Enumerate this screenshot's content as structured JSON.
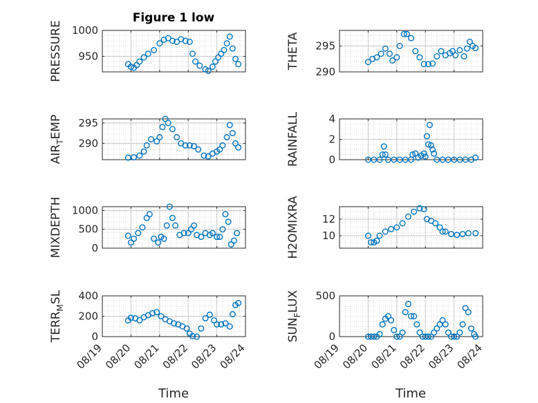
{
  "figure": {
    "title": "Figure 1 low",
    "marker_color": "#0072BD",
    "grid_color": "#d9d9d9",
    "axis_color": "#262626",
    "x_tick_labels": [
      "08/19",
      "08/20",
      "08/21",
      "08/22",
      "08/23",
      "08/24"
    ],
    "x_axis_label": "Time"
  },
  "chart_data": [
    {
      "type": "scatter",
      "ylabel": "PRESSURE",
      "ylim": [
        920,
        1000
      ],
      "yticks": [
        950,
        1000
      ],
      "xlim": [
        0,
        5
      ],
      "grid": "on",
      "x": [
        0.9,
        1.0,
        1.1,
        1.2,
        1.3,
        1.45,
        1.6,
        1.8,
        2.0,
        2.15,
        2.3,
        2.45,
        2.6,
        2.75,
        2.9,
        3.05,
        3.15,
        3.25,
        3.4,
        3.6,
        3.7,
        3.85,
        3.95,
        4.05,
        4.15,
        4.25,
        4.35,
        4.45,
        4.55,
        4.65,
        4.75
      ],
      "y": [
        935,
        930,
        928,
        933,
        940,
        948,
        955,
        962,
        975,
        982,
        985,
        980,
        978,
        983,
        980,
        978,
        955,
        940,
        932,
        925,
        922,
        930,
        940,
        948,
        955,
        962,
        975,
        988,
        965,
        945,
        935
      ]
    },
    {
      "type": "scatter",
      "ylabel": "THETA",
      "ylim": [
        290,
        298
      ],
      "yticks": [
        290,
        295
      ],
      "xlim": [
        0,
        5
      ],
      "grid": "on",
      "x": [
        1.0,
        1.15,
        1.3,
        1.45,
        1.6,
        1.75,
        1.85,
        2.0,
        2.1,
        2.25,
        2.35,
        2.5,
        2.65,
        2.8,
        2.95,
        3.1,
        3.25,
        3.4,
        3.55,
        3.7,
        3.85,
        3.95,
        4.05,
        4.2,
        4.35,
        4.45,
        4.55,
        4.65,
        4.75
      ],
      "y": [
        291.9,
        292.5,
        292.8,
        293.5,
        294.5,
        293.5,
        292.2,
        292.8,
        295,
        297.3,
        297.3,
        296.5,
        294,
        292.8,
        291.5,
        291.5,
        291.6,
        293,
        294,
        293.2,
        293.6,
        294,
        293.2,
        294.2,
        293,
        294.5,
        295.8,
        295,
        294.6
      ]
    },
    {
      "type": "scatter",
      "ylabel": "AIR_TEMP",
      "ylim": [
        286,
        296
      ],
      "yticks": [
        290,
        295
      ],
      "xlim": [
        0,
        5
      ],
      "grid": "on",
      "x": [
        0.9,
        1.1,
        1.3,
        1.45,
        1.55,
        1.7,
        1.9,
        2.0,
        2.1,
        2.2,
        2.3,
        2.45,
        2.6,
        2.75,
        2.9,
        3.05,
        3.2,
        3.35,
        3.55,
        3.7,
        3.85,
        4.0,
        4.1,
        4.2,
        4.35,
        4.45,
        4.55,
        4.65,
        4.75
      ],
      "y": [
        286.5,
        286.6,
        287,
        288,
        289.5,
        291,
        290.5,
        291.5,
        294,
        296,
        295,
        293.5,
        291.5,
        290,
        289.5,
        289.5,
        289.3,
        288.5,
        287,
        286.8,
        287.5,
        288,
        288.5,
        289.5,
        291.5,
        294.5,
        292.5,
        290,
        289
      ]
    },
    {
      "type": "scatter",
      "ylabel": "RAINFALL",
      "ylim": [
        0,
        4
      ],
      "yticks": [
        0,
        2,
        4
      ],
      "xlim": [
        0,
        5
      ],
      "grid": "on",
      "x": [
        1.0,
        1.2,
        1.4,
        1.5,
        1.55,
        1.6,
        1.7,
        1.9,
        2.1,
        2.3,
        2.5,
        2.55,
        2.65,
        2.75,
        2.85,
        2.95,
        3.0,
        3.05,
        3.1,
        3.15,
        3.2,
        3.25,
        3.3,
        3.4,
        3.6,
        3.8,
        4.0,
        4.2,
        4.4,
        4.6,
        4.75
      ],
      "y": [
        0,
        0,
        0,
        0.5,
        1.3,
        0.5,
        0,
        0,
        0,
        0,
        0,
        0.5,
        0.6,
        0.2,
        0.4,
        0.6,
        0.3,
        2.3,
        1.5,
        3.4,
        1.4,
        1.0,
        0.6,
        0,
        0,
        0,
        0,
        0,
        0,
        0,
        0.2
      ]
    },
    {
      "type": "scatter",
      "ylabel": "MIXDEPTH",
      "ylim": [
        0,
        1100
      ],
      "yticks": [
        0,
        500,
        1000
      ],
      "xlim": [
        0,
        5
      ],
      "grid": "on",
      "x": [
        0.9,
        1.0,
        1.1,
        1.25,
        1.4,
        1.55,
        1.65,
        1.8,
        1.95,
        2.05,
        2.15,
        2.25,
        2.35,
        2.45,
        2.55,
        2.7,
        2.85,
        3.0,
        3.1,
        3.2,
        3.3,
        3.45,
        3.6,
        3.75,
        3.85,
        4.0,
        4.1,
        4.2,
        4.3,
        4.4,
        4.5,
        4.6,
        4.7
      ],
      "y": [
        330,
        150,
        250,
        400,
        550,
        800,
        900,
        250,
        150,
        300,
        250,
        600,
        1100,
        800,
        600,
        350,
        400,
        400,
        500,
        600,
        350,
        300,
        400,
        350,
        400,
        300,
        300,
        500,
        900,
        700,
        100,
        200,
        400
      ]
    },
    {
      "type": "scatter",
      "ylabel": "H2OMIXRA",
      "ylim": [
        8.5,
        13.5
      ],
      "yticks": [
        10,
        12
      ],
      "xlim": [
        0,
        5
      ],
      "grid": "on",
      "x": [
        1.0,
        1.1,
        1.2,
        1.3,
        1.4,
        1.6,
        1.8,
        2.0,
        2.2,
        2.4,
        2.6,
        2.8,
        2.95,
        3.05,
        3.2,
        3.35,
        3.5,
        3.6,
        3.7,
        3.9,
        4.1,
        4.3,
        4.5,
        4.75
      ],
      "y": [
        10,
        9.2,
        9.2,
        9.4,
        10,
        10.5,
        10.8,
        11,
        11.5,
        12.3,
        12.9,
        13.3,
        13.2,
        12,
        11.8,
        11.5,
        11,
        10.5,
        10.5,
        10.2,
        10.1,
        10.2,
        10.3,
        10.3
      ]
    },
    {
      "type": "scatter",
      "ylabel": "TERR_MSL",
      "ylim": [
        0,
        400
      ],
      "yticks": [
        0,
        200,
        400
      ],
      "xlim": [
        0,
        5
      ],
      "grid": "on",
      "x": [
        0.9,
        1.0,
        1.15,
        1.3,
        1.45,
        1.6,
        1.75,
        1.9,
        2.05,
        2.2,
        2.35,
        2.5,
        2.65,
        2.8,
        2.95,
        3.05,
        3.15,
        3.3,
        3.45,
        3.6,
        3.75,
        3.9,
        4.0,
        4.15,
        4.3,
        4.45,
        4.55,
        4.65,
        4.75
      ],
      "y": [
        160,
        185,
        180,
        160,
        190,
        210,
        230,
        240,
        200,
        170,
        150,
        130,
        120,
        100,
        80,
        30,
        5,
        0,
        80,
        180,
        215,
        160,
        120,
        120,
        130,
        100,
        220,
        310,
        330
      ]
    },
    {
      "type": "scatter",
      "ylabel": "SUN_FLUX",
      "ylim": [
        0,
        500
      ],
      "yticks": [
        0,
        500
      ],
      "xlim": [
        0,
        5
      ],
      "grid": "on",
      "x": [
        1.0,
        1.1,
        1.2,
        1.3,
        1.4,
        1.5,
        1.6,
        1.7,
        1.8,
        1.9,
        2.0,
        2.1,
        2.2,
        2.3,
        2.4,
        2.5,
        2.6,
        2.7,
        2.8,
        2.9,
        3.0,
        3.1,
        3.2,
        3.3,
        3.4,
        3.5,
        3.6,
        3.7,
        3.8,
        3.9,
        4.0,
        4.1,
        4.2,
        4.3,
        4.4,
        4.5,
        4.6,
        4.7,
        4.75
      ],
      "y": [
        0,
        0,
        0,
        0,
        30,
        150,
        220,
        250,
        200,
        80,
        0,
        0,
        50,
        300,
        400,
        250,
        250,
        150,
        50,
        0,
        0,
        0,
        0,
        50,
        100,
        150,
        200,
        150,
        50,
        0,
        0,
        0,
        50,
        150,
        350,
        300,
        100,
        30,
        0
      ]
    }
  ]
}
